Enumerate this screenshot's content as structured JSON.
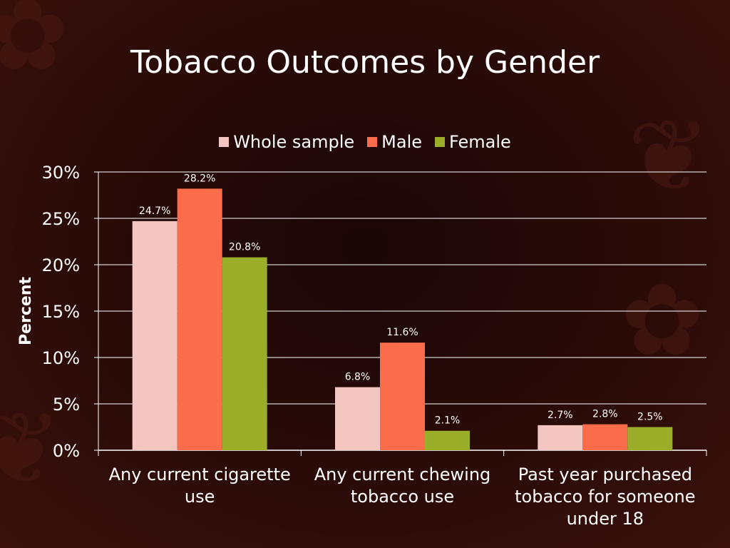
{
  "chart_data": {
    "type": "bar",
    "title": "Tobacco Outcomes by Gender",
    "xlabel": "",
    "ylabel": "Percent",
    "ylim": [
      0,
      30
    ],
    "yticks": [
      "0%",
      "5%",
      "10%",
      "15%",
      "20%",
      "25%",
      "30%"
    ],
    "ytick_values": [
      0,
      5,
      10,
      15,
      20,
      25,
      30
    ],
    "grid": true,
    "legend_position": "top",
    "categories": [
      [
        "Any current cigarette",
        "use"
      ],
      [
        "Any current chewing",
        "tobacco use"
      ],
      [
        "Past year purchased",
        "tobacco for someone",
        "under 18"
      ]
    ],
    "series": [
      {
        "name": "Whole sample",
        "color": "#f4c6c2",
        "values": [
          24.7,
          6.8,
          2.7
        ],
        "labels": [
          "24.7%",
          "6.8%",
          "2.7%"
        ]
      },
      {
        "name": "Male",
        "color": "#fb6d4a",
        "values": [
          28.2,
          11.6,
          2.8
        ],
        "labels": [
          "28.2%",
          "11.6%",
          "2.8%"
        ]
      },
      {
        "name": "Female",
        "color": "#9bae2a",
        "values": [
          20.8,
          2.1,
          2.5
        ],
        "labels": [
          "20.8%",
          "2.1%",
          "2.5%"
        ]
      }
    ]
  }
}
